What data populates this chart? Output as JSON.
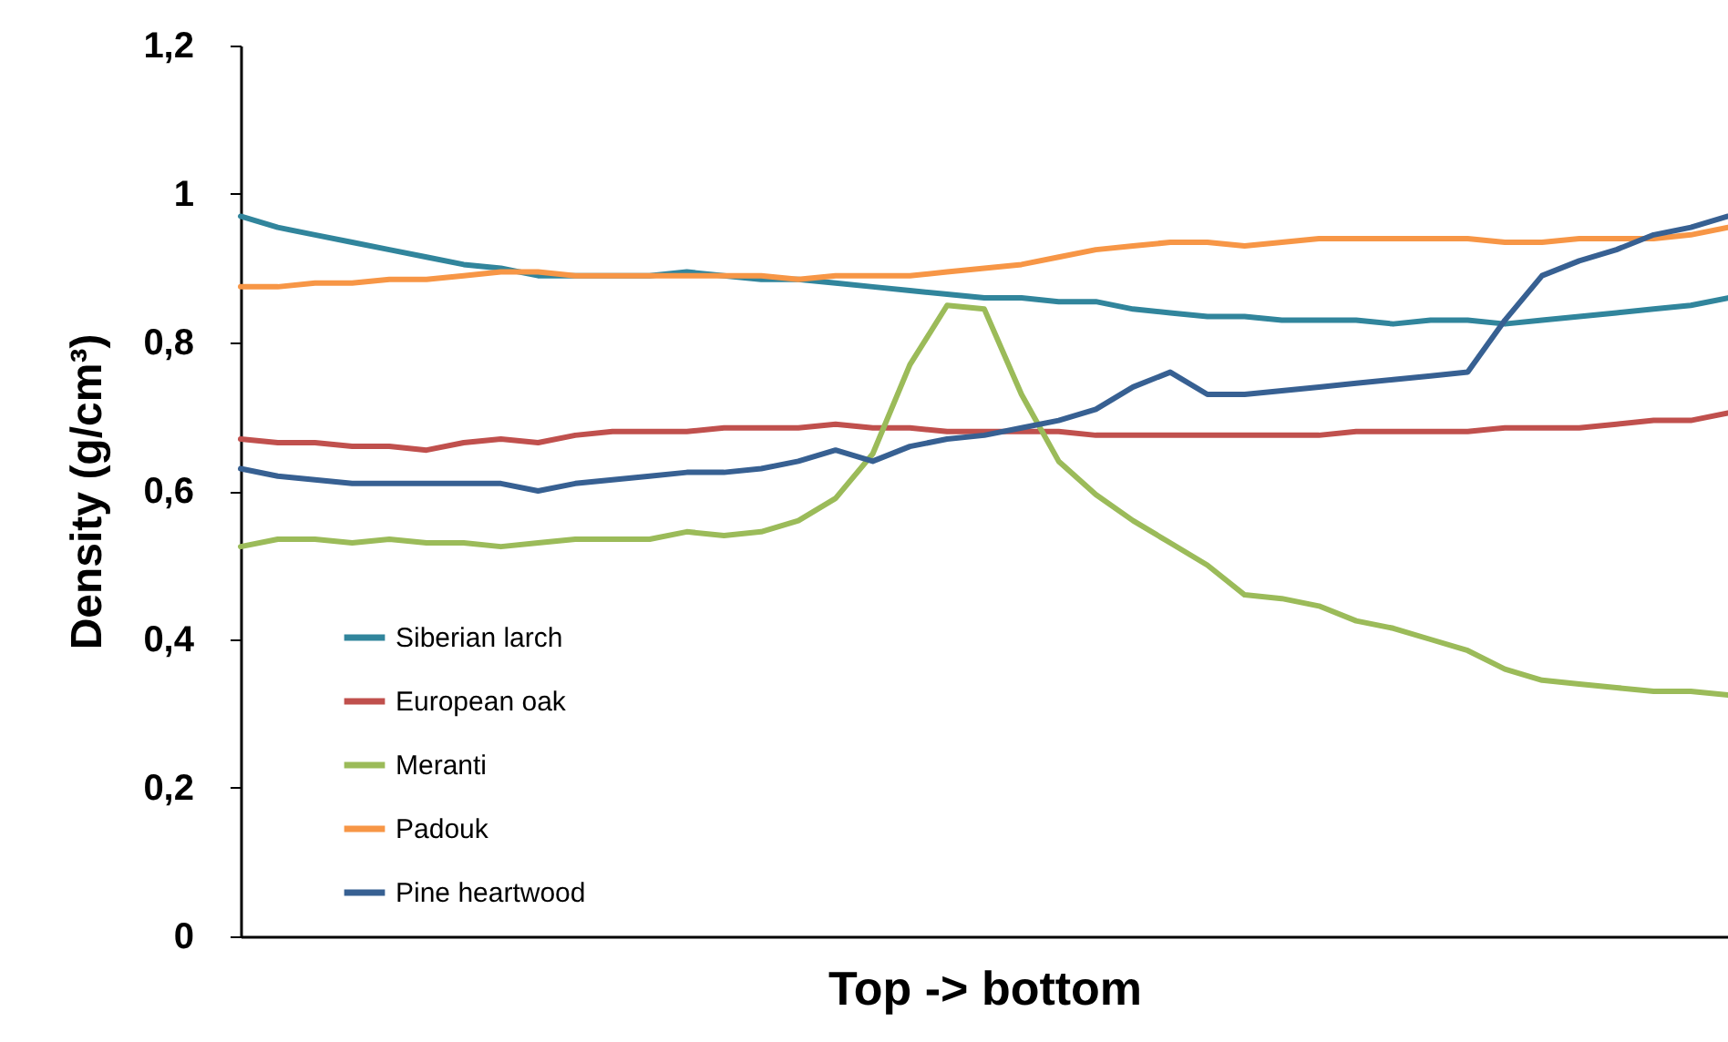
{
  "chart_data": {
    "type": "line",
    "xlabel": "Top -> bottom",
    "ylabel": "Density (g/cm³)",
    "categories": [
      null,
      null,
      null,
      null,
      null,
      null,
      null,
      null,
      null,
      null,
      null,
      null,
      null,
      null,
      null,
      null,
      null,
      null,
      null,
      null,
      null,
      null,
      null,
      null,
      null,
      null,
      null,
      null,
      null,
      null,
      null,
      null,
      null,
      null,
      null,
      null,
      null,
      null,
      null,
      null,
      null
    ],
    "ylim": [
      0,
      1.2
    ],
    "yticks": [
      0,
      {
        "value": 0.2,
        "label": "0,2"
      },
      {
        "value": 0.4,
        "label": "0,4"
      },
      {
        "value": 0.6,
        "label": "0,6"
      },
      {
        "value": 0.8,
        "label": "0,8"
      },
      1,
      {
        "value": 1.2,
        "label": "1,2"
      }
    ],
    "grid": false,
    "legend": "bottom left",
    "marker": "none",
    "line_style": "solid",
    "series": [
      {
        "name": "Siberian larch",
        "color": "#31859c",
        "values": [
          0.97,
          0.955,
          0.945,
          0.935,
          0.925,
          0.915,
          0.905,
          0.9,
          0.89,
          0.89,
          0.89,
          0.89,
          0.895,
          0.89,
          0.885,
          0.885,
          0.88,
          0.875,
          0.87,
          0.865,
          0.86,
          0.86,
          0.855,
          0.855,
          0.845,
          0.84,
          0.835,
          0.835,
          0.83,
          0.83,
          0.83,
          0.825,
          0.83,
          0.83,
          0.825,
          0.83,
          0.835,
          0.84,
          0.845,
          0.85,
          0.86
        ]
      },
      {
        "name": "European oak",
        "color": "#c0504d",
        "values": [
          0.67,
          0.665,
          0.665,
          0.66,
          0.66,
          0.655,
          0.665,
          0.67,
          0.665,
          0.675,
          0.68,
          0.68,
          0.68,
          0.685,
          0.685,
          0.685,
          0.69,
          0.685,
          0.685,
          0.68,
          0.68,
          0.68,
          0.68,
          0.675,
          0.675,
          0.675,
          0.675,
          0.675,
          0.675,
          0.675,
          0.68,
          0.68,
          0.68,
          0.68,
          0.685,
          0.685,
          0.685,
          0.69,
          0.695,
          0.695,
          0.705
        ]
      },
      {
        "name": "Meranti",
        "color": "#9bbb59",
        "values": [
          0.525,
          0.535,
          0.535,
          0.53,
          0.535,
          0.53,
          0.53,
          0.525,
          0.53,
          0.535,
          0.535,
          0.535,
          0.545,
          0.54,
          0.545,
          0.56,
          0.59,
          0.65,
          0.77,
          0.85,
          0.845,
          0.73,
          0.64,
          0.595,
          0.56,
          0.53,
          0.5,
          0.46,
          0.455,
          0.445,
          0.425,
          0.415,
          0.4,
          0.385,
          0.36,
          0.345,
          0.34,
          0.335,
          0.33,
          0.33,
          0.325
        ]
      },
      {
        "name": "Padouk",
        "color": "#f79646",
        "values": [
          0.875,
          0.875,
          0.88,
          0.88,
          0.885,
          0.885,
          0.89,
          0.895,
          0.895,
          0.89,
          0.89,
          0.89,
          0.89,
          0.89,
          0.89,
          0.885,
          0.89,
          0.89,
          0.89,
          0.895,
          0.9,
          0.905,
          0.915,
          0.925,
          0.93,
          0.935,
          0.935,
          0.93,
          0.935,
          0.94,
          0.94,
          0.94,
          0.94,
          0.94,
          0.935,
          0.935,
          0.94,
          0.94,
          0.94,
          0.945,
          0.955
        ]
      },
      {
        "name": "Pine heartwood",
        "color": "#376092",
        "values": [
          0.63,
          0.62,
          0.615,
          0.61,
          0.61,
          0.61,
          0.61,
          0.61,
          0.6,
          0.61,
          0.615,
          0.62,
          0.625,
          0.625,
          0.63,
          0.64,
          0.655,
          0.64,
          0.66,
          0.67,
          0.675,
          0.685,
          0.695,
          0.71,
          0.74,
          0.76,
          0.73,
          0.73,
          0.735,
          0.74,
          0.745,
          0.75,
          0.755,
          0.76,
          0.83,
          0.89,
          0.91,
          0.925,
          0.945,
          0.955,
          0.97
        ]
      }
    ]
  }
}
